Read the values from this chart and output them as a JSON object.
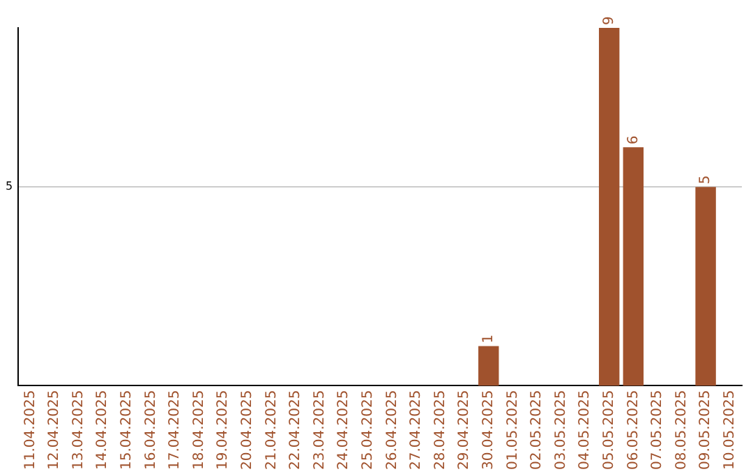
{
  "chart_data": {
    "type": "bar",
    "categories": [
      "11.04.2025",
      "12.04.2025",
      "13.04.2025",
      "14.04.2025",
      "15.04.2025",
      "16.04.2025",
      "17.04.2025",
      "18.04.2025",
      "19.04.2025",
      "20.04.2025",
      "21.04.2025",
      "22.04.2025",
      "23.04.2025",
      "24.04.2025",
      "25.04.2025",
      "26.04.2025",
      "27.04.2025",
      "28.04.2025",
      "29.04.2025",
      "30.04.2025",
      "01.05.2025",
      "02.05.2025",
      "03.05.2025",
      "04.05.2025",
      "05.05.2025",
      "06.05.2025",
      "07.05.2025",
      "08.05.2025",
      "09.05.2025",
      "10.05.2025"
    ],
    "values": [
      null,
      null,
      null,
      null,
      null,
      null,
      null,
      null,
      null,
      null,
      null,
      null,
      null,
      null,
      null,
      null,
      null,
      null,
      null,
      1,
      null,
      null,
      null,
      null,
      9,
      6,
      null,
      null,
      5,
      null
    ],
    "value_labels": [
      null,
      null,
      null,
      null,
      null,
      null,
      null,
      null,
      null,
      null,
      null,
      null,
      null,
      null,
      null,
      null,
      null,
      null,
      null,
      "1",
      null,
      null,
      null,
      null,
      "9",
      "6",
      null,
      null,
      "5",
      null
    ],
    "color": "#a0522d",
    "ylim": [
      0,
      9
    ],
    "yticks": [
      5
    ],
    "grid": "y",
    "legend": false
  }
}
